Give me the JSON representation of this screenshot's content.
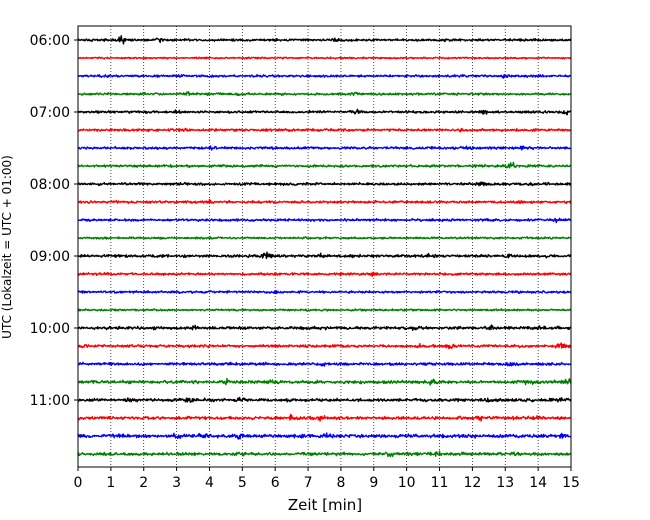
{
  "chart_data": {
    "type": "line",
    "title": "",
    "xlabel": "Zeit  [min]",
    "ylabel": "UTC (Lokalzeit = UTC + 01:00)",
    "xlim": [
      0,
      15
    ],
    "x_ticks": [
      0,
      1,
      2,
      3,
      4,
      5,
      6,
      7,
      8,
      9,
      10,
      11,
      12,
      13,
      14,
      15
    ],
    "x_grid": true,
    "y_ticks": [
      "06:00",
      "07:00",
      "08:00",
      "09:00",
      "10:00",
      "11:00"
    ],
    "colors": [
      "#000000",
      "#ff0000",
      "#0000ff",
      "#008000"
    ],
    "series": [
      {
        "row_start": "06:00",
        "color": "#000000",
        "amplitude": 1.5,
        "bursts": [
          [
            1.35,
            4
          ],
          [
            2.45,
            2.5
          ],
          [
            7.8,
            1.6
          ],
          [
            11.2,
            1.4
          ]
        ]
      },
      {
        "row_start": "06:15",
        "color": "#ff0000",
        "amplitude": 1.1,
        "bursts": []
      },
      {
        "row_start": "06:30",
        "color": "#0000ff",
        "amplitude": 1.5,
        "bursts": [
          [
            3.1,
            2
          ],
          [
            13.0,
            2.2
          ]
        ]
      },
      {
        "row_start": "06:45",
        "color": "#008000",
        "amplitude": 1.5,
        "bursts": [
          [
            3.4,
            3
          ],
          [
            4.9,
            1.8
          ],
          [
            8.4,
            1.6
          ]
        ]
      },
      {
        "row_start": "07:00",
        "color": "#000000",
        "amplitude": 1.6,
        "bursts": [
          [
            3.0,
            1.5
          ],
          [
            8.5,
            1.8
          ],
          [
            12.4,
            2
          ],
          [
            14.9,
            2.2
          ]
        ]
      },
      {
        "row_start": "07:15",
        "color": "#ff0000",
        "amplitude": 1.6,
        "bursts": [
          [
            3.2,
            1.6
          ],
          [
            11.6,
            1.6
          ]
        ]
      },
      {
        "row_start": "07:30",
        "color": "#0000ff",
        "amplitude": 1.6,
        "bursts": [
          [
            4.0,
            1.5
          ],
          [
            11.8,
            1.6
          ],
          [
            13.5,
            1.6
          ]
        ]
      },
      {
        "row_start": "07:45",
        "color": "#008000",
        "amplitude": 1.6,
        "bursts": [
          [
            13.2,
            3
          ]
        ]
      },
      {
        "row_start": "08:00",
        "color": "#000000",
        "amplitude": 1.7,
        "bursts": [
          [
            12.3,
            2.2
          ],
          [
            14.3,
            1.8
          ]
        ]
      },
      {
        "row_start": "08:15",
        "color": "#ff0000",
        "amplitude": 1.6,
        "bursts": [
          [
            4.0,
            1.5
          ],
          [
            13.5,
            1.5
          ]
        ]
      },
      {
        "row_start": "08:30",
        "color": "#0000ff",
        "amplitude": 1.6,
        "bursts": [
          [
            14.5,
            1.5
          ]
        ]
      },
      {
        "row_start": "08:45",
        "color": "#008000",
        "amplitude": 1.4,
        "bursts": []
      },
      {
        "row_start": "09:00",
        "color": "#000000",
        "amplitude": 1.9,
        "bursts": [
          [
            5.7,
            3
          ],
          [
            7.3,
            2
          ],
          [
            10.7,
            2.4
          ],
          [
            13.1,
            2.2
          ]
        ]
      },
      {
        "row_start": "09:15",
        "color": "#ff0000",
        "amplitude": 1.5,
        "bursts": [
          [
            9.0,
            3
          ],
          [
            8.0,
            1.8
          ]
        ]
      },
      {
        "row_start": "09:30",
        "color": "#0000ff",
        "amplitude": 1.5,
        "bursts": [
          [
            6.0,
            3.2
          ]
        ]
      },
      {
        "row_start": "09:45",
        "color": "#008000",
        "amplitude": 1.3,
        "bursts": []
      },
      {
        "row_start": "10:00",
        "color": "#000000",
        "amplitude": 1.9,
        "bursts": [
          [
            3.6,
            2.4
          ],
          [
            10.3,
            2.8
          ],
          [
            12.6,
            2.4
          ],
          [
            14.1,
            2.2
          ]
        ]
      },
      {
        "row_start": "10:15",
        "color": "#ff0000",
        "amplitude": 1.8,
        "bursts": [
          [
            10.4,
            2.8
          ],
          [
            14.7,
            3
          ],
          [
            11.3,
            1.8
          ]
        ]
      },
      {
        "row_start": "10:30",
        "color": "#0000ff",
        "amplitude": 1.8,
        "bursts": [
          [
            13.2,
            1.8
          ],
          [
            7.5,
            1.6
          ]
        ]
      },
      {
        "row_start": "10:45",
        "color": "#008000",
        "amplitude": 2.0,
        "bursts": [
          [
            4.5,
            2.6
          ],
          [
            10.8,
            2.6
          ],
          [
            13.7,
            2.2
          ],
          [
            14.9,
            3.4
          ],
          [
            6.0,
            1.8
          ]
        ]
      },
      {
        "row_start": "11:00",
        "color": "#000000",
        "amplitude": 2.0,
        "bursts": [
          [
            3.4,
            2.6
          ],
          [
            5.0,
            2.2
          ],
          [
            1.5,
            1.8
          ],
          [
            12.5,
            2
          ],
          [
            14.8,
            2.2
          ]
        ]
      },
      {
        "row_start": "11:15",
        "color": "#ff0000",
        "amplitude": 2.0,
        "bursts": [
          [
            7.4,
            3
          ],
          [
            6.5,
            2.4
          ],
          [
            12.2,
            2.2
          ],
          [
            14.0,
            1.8
          ]
        ]
      },
      {
        "row_start": "11:30",
        "color": "#0000ff",
        "amplitude": 2.2,
        "bursts": [
          [
            3.0,
            3
          ],
          [
            3.8,
            2.4
          ],
          [
            4.9,
            2.4
          ],
          [
            7.6,
            2.2
          ],
          [
            14.7,
            3
          ]
        ]
      },
      {
        "row_start": "11:45",
        "color": "#008000",
        "amplitude": 2.0,
        "bursts": [
          [
            5.0,
            2.6
          ],
          [
            9.5,
            2.4
          ],
          [
            11.0,
            2.2
          ],
          [
            13.4,
            2.2
          ]
        ]
      }
    ]
  }
}
